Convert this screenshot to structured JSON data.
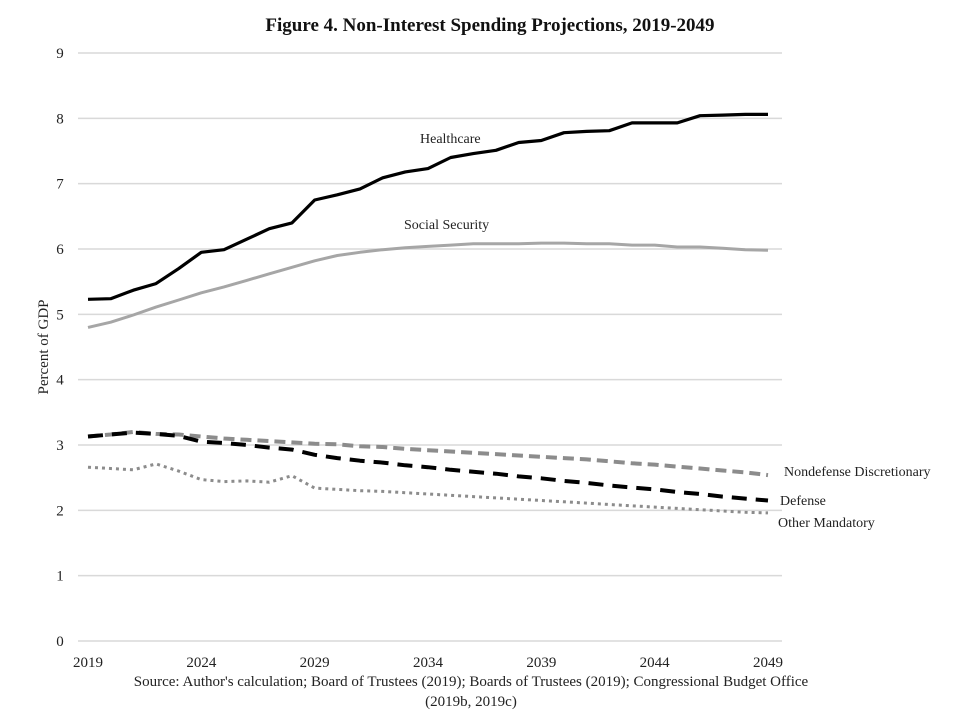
{
  "chart_data": {
    "type": "line",
    "title": "Figure 4. Non-Interest Spending Projections, 2019-2049",
    "xlabel": "",
    "ylabel": "Percent of GDP",
    "xlim": [
      2019,
      2049
    ],
    "ylim": [
      0,
      9
    ],
    "xticks": [
      2019,
      2024,
      2029,
      2034,
      2039,
      2044,
      2049
    ],
    "yticks": [
      0,
      1,
      2,
      3,
      4,
      5,
      6,
      7,
      8,
      9
    ],
    "grid": "horizontal",
    "x": [
      2019,
      2020,
      2021,
      2022,
      2023,
      2024,
      2025,
      2026,
      2027,
      2028,
      2029,
      2030,
      2031,
      2032,
      2033,
      2034,
      2035,
      2036,
      2037,
      2038,
      2039,
      2040,
      2041,
      2042,
      2043,
      2044,
      2045,
      2046,
      2047,
      2048,
      2049
    ],
    "series": [
      {
        "name": "Healthcare",
        "style": "solid-black",
        "values": [
          5.23,
          5.24,
          5.37,
          5.47,
          5.7,
          5.95,
          5.99,
          6.15,
          6.31,
          6.4,
          6.75,
          6.83,
          6.92,
          7.09,
          7.18,
          7.23,
          7.4,
          7.46,
          7.51,
          7.63,
          7.66,
          7.78,
          7.8,
          7.81,
          7.93,
          7.93,
          7.93,
          8.04,
          8.05,
          8.06,
          8.06
        ]
      },
      {
        "name": "Social Security",
        "style": "solid-gray",
        "values": [
          4.8,
          4.88,
          4.99,
          5.11,
          5.22,
          5.33,
          5.42,
          5.52,
          5.62,
          5.72,
          5.82,
          5.9,
          5.95,
          5.99,
          6.02,
          6.04,
          6.06,
          6.08,
          6.08,
          6.08,
          6.09,
          6.09,
          6.08,
          6.08,
          6.06,
          6.06,
          6.03,
          6.03,
          6.01,
          5.99,
          5.98
        ]
      },
      {
        "name": "Nondefense Discretionary",
        "style": "dashed-gray",
        "values": [
          3.13,
          3.16,
          3.2,
          3.17,
          3.16,
          3.13,
          3.1,
          3.08,
          3.06,
          3.04,
          3.02,
          3.01,
          2.98,
          2.97,
          2.94,
          2.92,
          2.9,
          2.88,
          2.86,
          2.84,
          2.82,
          2.8,
          2.78,
          2.75,
          2.72,
          2.7,
          2.67,
          2.64,
          2.61,
          2.58,
          2.54
        ]
      },
      {
        "name": "Defense",
        "style": "dashed-black",
        "values": [
          3.13,
          3.16,
          3.19,
          3.17,
          3.14,
          3.05,
          3.03,
          3.0,
          2.96,
          2.93,
          2.85,
          2.8,
          2.76,
          2.73,
          2.69,
          2.66,
          2.62,
          2.59,
          2.56,
          2.52,
          2.49,
          2.45,
          2.42,
          2.38,
          2.35,
          2.32,
          2.28,
          2.25,
          2.21,
          2.18,
          2.15
        ]
      },
      {
        "name": "Other Mandatory",
        "style": "dotted-gray",
        "values": [
          2.66,
          2.64,
          2.62,
          2.71,
          2.6,
          2.47,
          2.44,
          2.45,
          2.43,
          2.53,
          2.34,
          2.32,
          2.3,
          2.29,
          2.27,
          2.25,
          2.23,
          2.21,
          2.19,
          2.17,
          2.15,
          2.13,
          2.11,
          2.09,
          2.07,
          2.05,
          2.03,
          2.01,
          1.99,
          1.97,
          1.96
        ]
      }
    ],
    "labels": {
      "Healthcare": "Healthcare",
      "Social Security": "Social Security",
      "Nondefense Discretionary": "Nondefense Discretionary",
      "Defense": "Defense",
      "Other Mandatory": "Other Mandatory"
    },
    "source_line1": "Source: Author's calculation; Board of Trustees (2019); Boards of Trustees (2019); Congressional Budget Office",
    "source_line2": "(2019b, 2019c)"
  }
}
